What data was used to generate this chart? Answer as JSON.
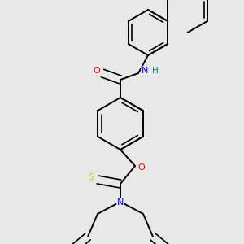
{
  "background_color": "#e8e8e8",
  "bond_color": "#000000",
  "atom_colors": {
    "O": "#ff0000",
    "N": "#0000ff",
    "S": "#cccc00",
    "H": "#008080",
    "C": "#000000"
  },
  "figsize": [
    3.0,
    3.0
  ],
  "dpi": 100
}
